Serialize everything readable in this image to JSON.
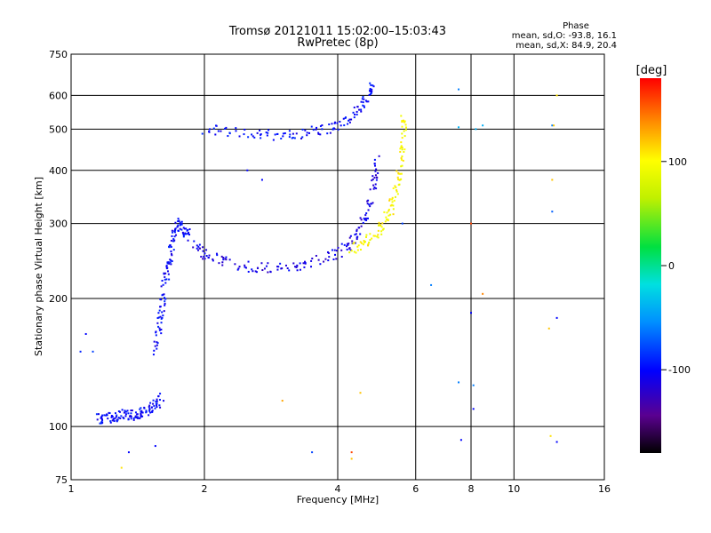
{
  "chart_data": {
    "type": "scatter",
    "title": "Tromsø 20121011 15:02:00–15:03:43",
    "subtitle": "RwPretec (8p)",
    "xlabel": "Frequency [MHz]",
    "ylabel": "Stationary phase Virtual Height [km]",
    "x_scale": "log",
    "y_scale": "log",
    "xlim": [
      1,
      16
    ],
    "ylim": [
      75,
      750
    ],
    "x_ticks": [
      1,
      2,
      4,
      6,
      8,
      10,
      16
    ],
    "x_tick_labels": [
      "1",
      "2",
      "4",
      "6",
      "8",
      "10",
      "16"
    ],
    "y_ticks": [
      75,
      100,
      200,
      300,
      400,
      500,
      600,
      750
    ],
    "y_tick_labels": [
      "75",
      "100",
      "200",
      "300",
      "400",
      "500",
      "600",
      "750"
    ],
    "grid": true,
    "phase_info": {
      "heading": "Phase",
      "o_line": "mean, sd,O: -93.8, 16.1",
      "x_line": "mean, sd,X: 84.9, 20.4"
    },
    "colorbar": {
      "label": "[deg]",
      "range": [
        -180,
        180
      ],
      "ticks": [
        100,
        0,
        -100
      ],
      "tick_labels": [
        "100",
        "0",
        "-100"
      ]
    },
    "traces": [
      {
        "name_hint": "e-layer",
        "phase": -100,
        "points": [
          [
            1.15,
            104
          ],
          [
            1.2,
            105
          ],
          [
            1.25,
            106
          ],
          [
            1.3,
            106
          ],
          [
            1.35,
            107
          ],
          [
            1.4,
            106
          ],
          [
            1.45,
            108
          ],
          [
            1.5,
            110
          ],
          [
            1.55,
            113
          ],
          [
            1.6,
            117
          ]
        ]
      },
      {
        "name_hint": "f-rise",
        "phase": -100,
        "points": [
          [
            1.55,
            150
          ],
          [
            1.58,
            170
          ],
          [
            1.6,
            190
          ],
          [
            1.62,
            210
          ],
          [
            1.65,
            235
          ],
          [
            1.68,
            260
          ],
          [
            1.7,
            285
          ],
          [
            1.75,
            300
          ],
          [
            1.8,
            290
          ],
          [
            1.85,
            280
          ]
        ]
      },
      {
        "name_hint": "o-trace",
        "phase": -110,
        "points": [
          [
            1.9,
            270
          ],
          [
            2.0,
            255
          ],
          [
            2.2,
            245
          ],
          [
            2.5,
            238
          ],
          [
            2.8,
            236
          ],
          [
            3.2,
            238
          ],
          [
            3.6,
            245
          ],
          [
            4.0,
            255
          ],
          [
            4.3,
            270
          ],
          [
            4.5,
            295
          ],
          [
            4.7,
            330
          ],
          [
            4.85,
            380
          ],
          [
            4.95,
            440
          ]
        ]
      },
      {
        "name_hint": "x-trace",
        "phase": 100,
        "points": [
          [
            4.3,
            262
          ],
          [
            4.6,
            270
          ],
          [
            4.9,
            285
          ],
          [
            5.1,
            300
          ],
          [
            5.3,
            330
          ],
          [
            5.45,
            370
          ],
          [
            5.55,
            420
          ],
          [
            5.6,
            480
          ],
          [
            5.65,
            540
          ]
        ]
      },
      {
        "name_hint": "multihop",
        "phase": -100,
        "points": [
          [
            2.0,
            500
          ],
          [
            2.3,
            492
          ],
          [
            2.7,
            486
          ],
          [
            3.1,
            485
          ],
          [
            3.5,
            492
          ],
          [
            3.9,
            505
          ],
          [
            4.2,
            525
          ],
          [
            4.5,
            560
          ],
          [
            4.7,
            600
          ],
          [
            4.8,
            630
          ]
        ]
      }
    ],
    "noise_points": [
      [
        1.05,
        150,
        -90
      ],
      [
        1.12,
        150,
        -80
      ],
      [
        1.08,
        165,
        -100
      ],
      [
        1.35,
        87,
        -100
      ],
      [
        1.3,
        80,
        110
      ],
      [
        1.55,
        90,
        -100
      ],
      [
        2.5,
        400,
        -100
      ],
      [
        2.7,
        380,
        -100
      ],
      [
        3.0,
        115,
        130
      ],
      [
        3.5,
        87,
        -80
      ],
      [
        4.3,
        87,
        160
      ],
      [
        4.3,
        84,
        120
      ],
      [
        4.5,
        120,
        120
      ],
      [
        5.6,
        300,
        -80
      ],
      [
        6.5,
        215,
        -60
      ],
      [
        7.5,
        620,
        -60
      ],
      [
        7.5,
        505,
        -40
      ],
      [
        7.5,
        127,
        -60
      ],
      [
        7.6,
        93,
        -100
      ],
      [
        8.0,
        300,
        160
      ],
      [
        8.0,
        185,
        -100
      ],
      [
        8.1,
        110,
        -100
      ],
      [
        8.1,
        125,
        -60
      ],
      [
        8.2,
        500,
        -40
      ],
      [
        8.5,
        205,
        140
      ],
      [
        8.5,
        510,
        -40
      ],
      [
        12.2,
        510,
        -60
      ],
      [
        12.3,
        510,
        120
      ],
      [
        12.2,
        320,
        -70
      ],
      [
        12.2,
        380,
        120
      ],
      [
        12.5,
        180,
        -100
      ],
      [
        12.5,
        92,
        -100
      ],
      [
        12.1,
        95,
        110
      ],
      [
        12.0,
        170,
        120
      ],
      [
        12.5,
        600,
        110
      ]
    ]
  }
}
